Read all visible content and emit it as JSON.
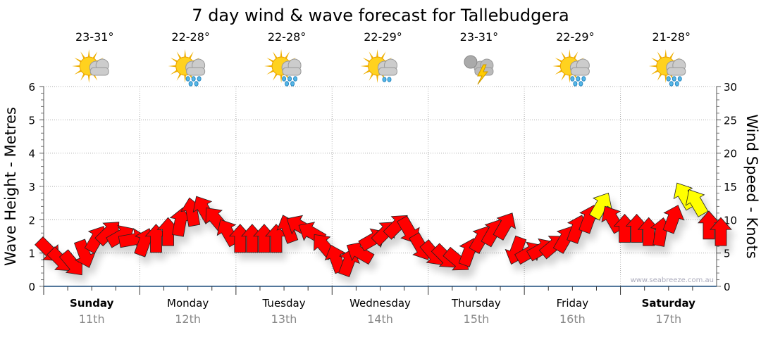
{
  "chart_data": {
    "type": "scatter",
    "title": "7 day wind & wave forecast for Tallebudgera",
    "ylabel": "Wave Height - Metres",
    "y2label": "Wind Speed - Knots",
    "ylim": [
      0,
      6
    ],
    "y2lim": [
      0,
      30
    ],
    "yticks": [
      "0",
      "1",
      "2",
      "3",
      "4",
      "5",
      "6"
    ],
    "y2ticks": [
      "0",
      "5",
      "10",
      "15",
      "20",
      "25",
      "30"
    ],
    "grid": true,
    "watermark": "www.seabreeze.com.au",
    "days": [
      {
        "name": "Sunday",
        "date": "11th",
        "bold": true,
        "temp": "23-31°",
        "icon": "partly-cloudy-icon"
      },
      {
        "name": "Monday",
        "date": "12th",
        "bold": false,
        "temp": "22-28°",
        "icon": "shower-icon"
      },
      {
        "name": "Tuesday",
        "date": "13th",
        "bold": false,
        "temp": "22-28°",
        "icon": "shower-icon"
      },
      {
        "name": "Wednesday",
        "date": "14th",
        "bold": false,
        "temp": "22-29°",
        "icon": "light-shower-icon"
      },
      {
        "name": "Thursday",
        "date": "15th",
        "bold": false,
        "temp": "23-31°",
        "icon": "storm-icon"
      },
      {
        "name": "Friday",
        "date": "16th",
        "bold": false,
        "temp": "22-29°",
        "icon": "shower-icon"
      },
      {
        "name": "Saturday",
        "date": "17th",
        "bold": true,
        "temp": "21-28°",
        "icon": "shower-icon"
      }
    ],
    "wind_interval_hours": 3,
    "wind_series": {
      "name": "Wind speed (knots) and direction (degrees arrow points)",
      "knots": [
        5.5,
        4,
        3.5,
        5,
        7,
        8,
        7.5,
        7,
        6.5,
        7,
        8,
        9.5,
        11,
        11.5,
        10,
        8,
        7,
        7,
        7,
        7,
        8.5,
        9,
        8,
        6,
        4,
        3.5,
        5,
        7,
        8,
        9,
        8.5,
        6,
        5,
        4.5,
        4,
        5,
        7,
        8,
        9,
        5.5,
        5,
        5.5,
        6,
        7,
        8.5,
        10,
        12,
        10,
        8.5,
        8.5,
        8,
        8,
        10,
        13.5,
        12.5,
        9,
        8
      ],
      "direction": [
        135,
        135,
        140,
        160,
        30,
        45,
        60,
        80,
        20,
        0,
        0,
        10,
        350,
        330,
        320,
        330,
        0,
        0,
        0,
        0,
        340,
        300,
        300,
        320,
        340,
        20,
        300,
        60,
        45,
        45,
        150,
        150,
        140,
        135,
        130,
        20,
        30,
        30,
        30,
        200,
        60,
        60,
        50,
        30,
        20,
        20,
        30,
        330,
        0,
        0,
        0,
        10,
        20,
        330,
        330,
        0,
        0
      ]
    },
    "colors": {
      "normal": "#ff0000",
      "strong": "#ffff00",
      "strong_threshold_knots": 12,
      "axis": "#1a4a7a",
      "grid": "#aaaaaa",
      "date": "#888888"
    }
  }
}
